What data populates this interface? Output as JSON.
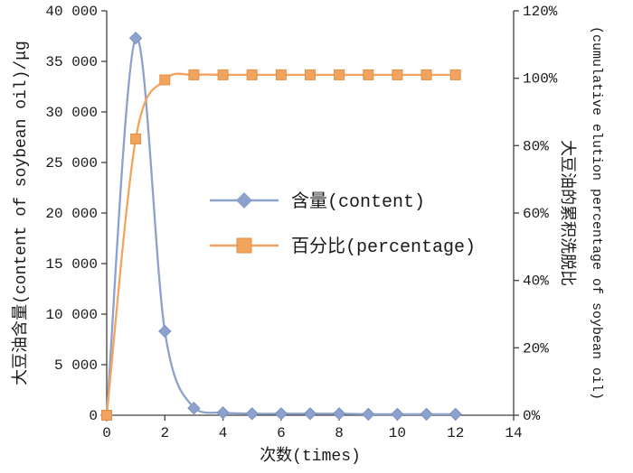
{
  "chart_data": {
    "type": "line",
    "x": [
      0,
      1,
      2,
      3,
      4,
      5,
      6,
      7,
      8,
      9,
      10,
      11,
      12
    ],
    "series": [
      {
        "name": "含量(content)",
        "axis": "left",
        "marker": "diamond",
        "color": "#8CA2CD",
        "marker_stroke": "#7A92C0",
        "values": [
          0,
          37300,
          8300,
          700,
          250,
          150,
          150,
          150,
          150,
          100,
          100,
          100,
          100
        ]
      },
      {
        "name": "百分比(percentage)",
        "axis": "right",
        "marker": "square",
        "color": "#F2A45F",
        "marker_stroke": "#DE8F48",
        "values": [
          0,
          82,
          99.5,
          101,
          101,
          101,
          101,
          101,
          101,
          101,
          101,
          101,
          101
        ]
      }
    ],
    "title": "",
    "xlabel": "次数(times)",
    "ylabel_left": "大豆油含量(content of soybean oil)/μg",
    "ylabel_right_cn": "大豆油的累积洗脱比",
    "ylabel_right_en": "(cumulative elution percentage of soybean oil)",
    "xlim": [
      0,
      14
    ],
    "ylim_left": [
      0,
      40000
    ],
    "ylim_right_percent": [
      0,
      120
    ],
    "x_ticks": [
      "0",
      "2",
      "4",
      "6",
      "8",
      "10",
      "12",
      "14"
    ],
    "y_ticks_left": [
      "0",
      "5 000",
      "10 000",
      "15 000",
      "20 000",
      "25 000",
      "30 000",
      "35 000",
      "40 000"
    ],
    "y_ticks_right": [
      "0%",
      "20%",
      "40%",
      "60%",
      "80%",
      "100%",
      "120%"
    ],
    "grid": false,
    "legend_position": "center-left-inside"
  }
}
